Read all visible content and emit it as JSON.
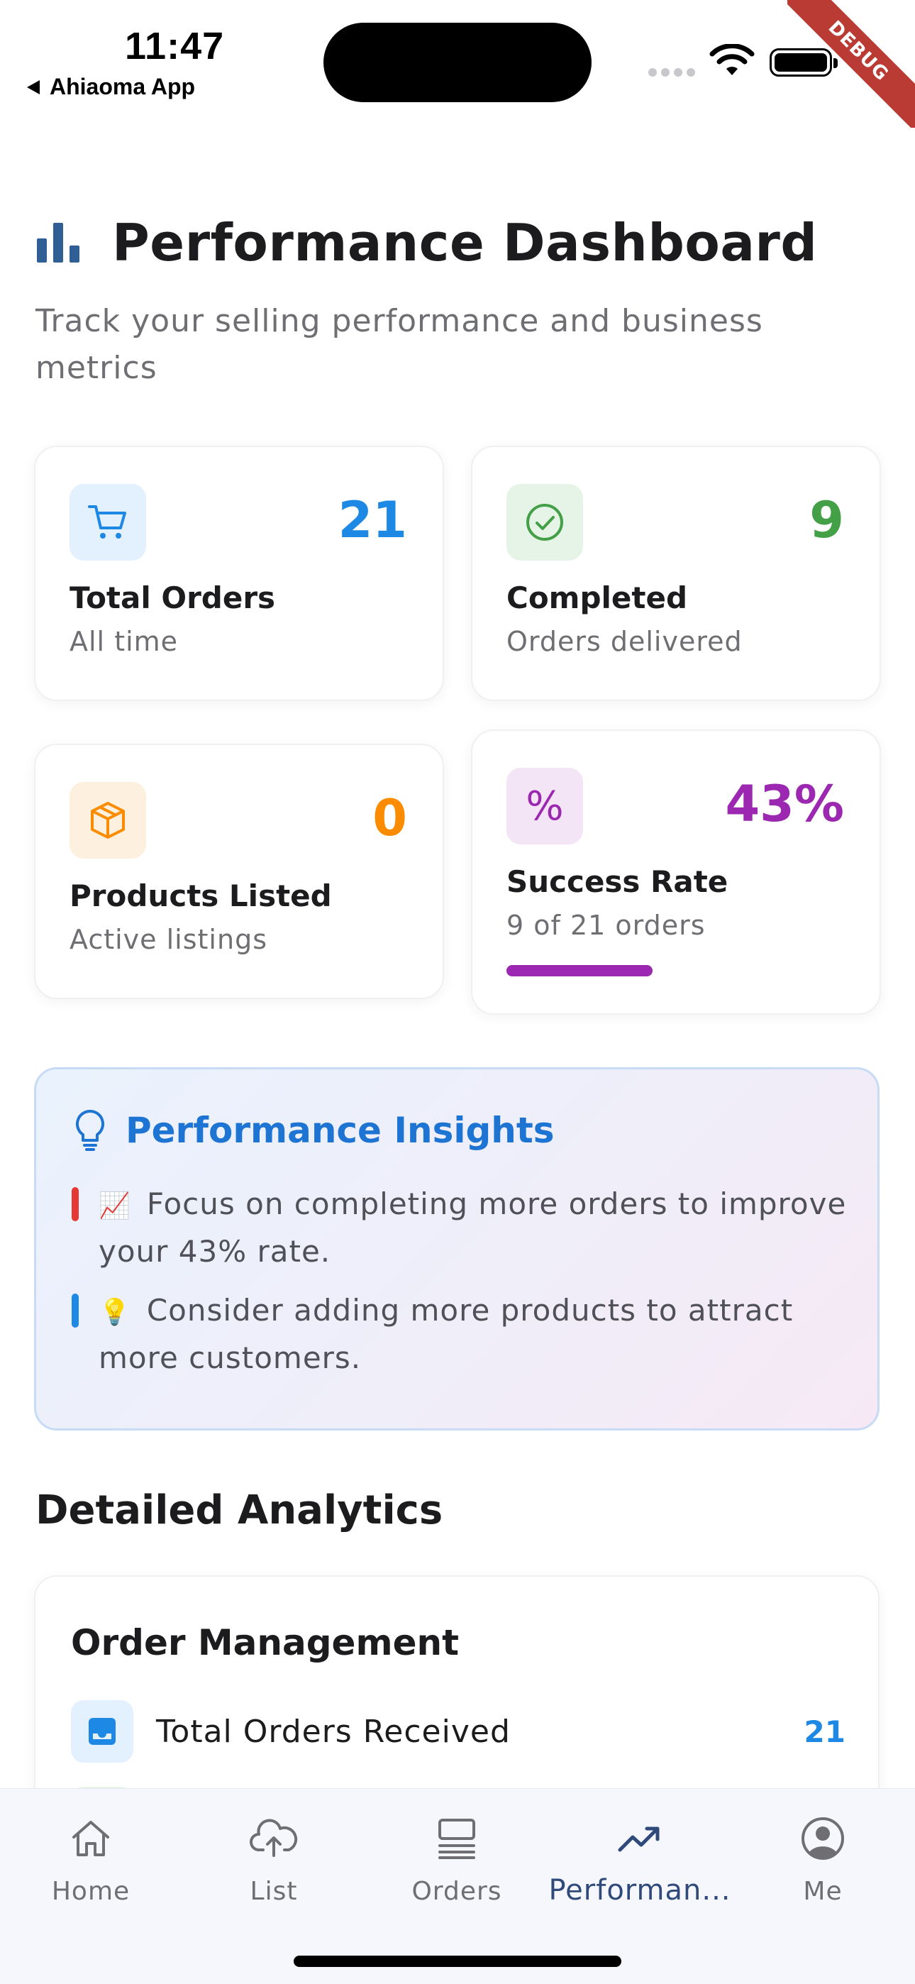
{
  "status_bar": {
    "time": "11:47",
    "back_app": "Ahiaoma App"
  },
  "debug_banner": "DEBUG",
  "header": {
    "title": "Performance Dashboard",
    "subtitle": "Track your selling performance and business metrics",
    "icon": "bar-chart-icon"
  },
  "stats": [
    {
      "label": "Total Orders",
      "sub": "All time",
      "value": "21",
      "icon": "shopping-cart-icon",
      "color": "#1e88e5",
      "bg": "#e3f0fd"
    },
    {
      "label": "Completed",
      "sub": "Orders delivered",
      "value": "9",
      "icon": "check-circle-icon",
      "color": "#43a047",
      "bg": "#e6f4e7"
    },
    {
      "label": "Products Listed",
      "sub": "Active listings",
      "value": "0",
      "icon": "box-icon",
      "color": "#fb8c00",
      "bg": "#fdf0df"
    },
    {
      "label": "Success Rate",
      "sub": "9 of 21 orders",
      "value": "43%",
      "icon": "percent-icon",
      "color": "#9c27b0",
      "bg": "#f3e5f5",
      "progress": 0.43
    }
  ],
  "insights": {
    "title": "Performance Insights",
    "icon": "lightbulb-icon",
    "items": [
      {
        "emoji": "📈",
        "text": "Focus on completing more orders to improve your 43% rate.",
        "accent": "#e53935"
      },
      {
        "emoji": "💡",
        "text": "Consider adding more products to attract more customers.",
        "accent": "#1e88e5"
      }
    ]
  },
  "analytics": {
    "title": "Detailed Analytics",
    "order_management": {
      "title": "Order Management",
      "rows": [
        {
          "label": "Total Orders Received",
          "value": "21",
          "icon": "inbox-icon"
        }
      ]
    }
  },
  "bottom_nav": {
    "items": [
      {
        "label": "Home",
        "icon": "home-icon",
        "active": false
      },
      {
        "label": "List",
        "icon": "cloud-upload-icon",
        "active": false
      },
      {
        "label": "Orders",
        "icon": "orders-list-icon",
        "active": false
      },
      {
        "label": "Performan...",
        "icon": "trending-up-icon",
        "active": true
      },
      {
        "label": "Me",
        "icon": "account-circle-icon",
        "active": false
      }
    ]
  },
  "colors": {
    "primary_blue": "#1e88e5",
    "insight_title": "#1e74d2",
    "active_nav": "#2f4a7a"
  }
}
